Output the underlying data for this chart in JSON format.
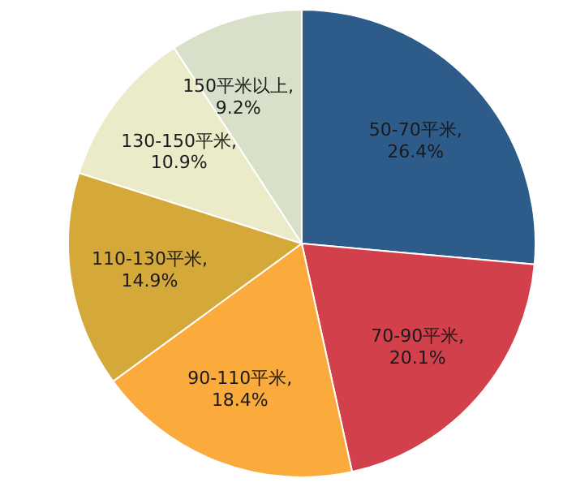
{
  "chart_data": {
    "type": "pie",
    "categories": [
      "50-70平米",
      "70-90平米",
      "90-110平米",
      "110-130平米",
      "130-150平米",
      "150平米以上"
    ],
    "values": [
      26.4,
      20.1,
      18.4,
      14.9,
      10.9,
      9.2
    ],
    "colors": [
      "#2e5c8a",
      "#d1404b",
      "#fbab3b",
      "#d5a83a",
      "#ecebc9",
      "#d8e0c9"
    ],
    "data_labels": true,
    "value_labels": [
      ", 26.4%",
      ", 20.1%",
      ", 18.4%",
      ", 14.9%",
      ", 10.9%",
      ", 9.2%"
    ]
  }
}
